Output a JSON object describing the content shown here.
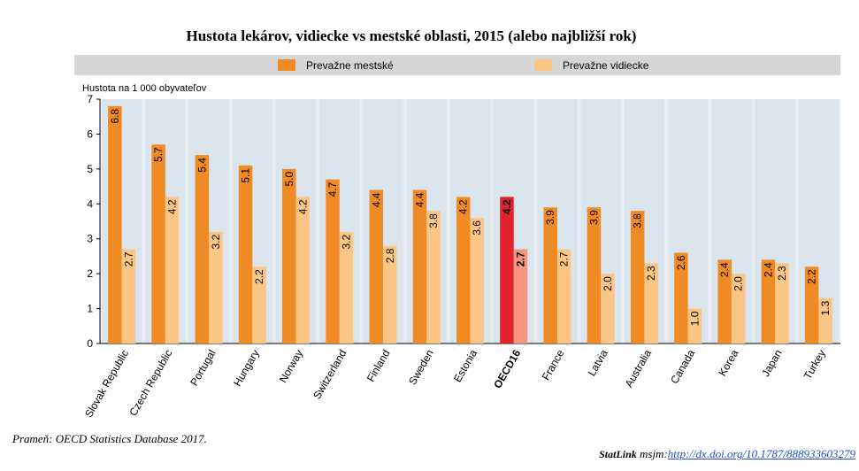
{
  "chart_data": {
    "type": "bar",
    "title": "Hustota lekárov, vidiecke vs mestské oblasti, 2015 (alebo najbližší rok)",
    "ylabel": "Hustota na 1 000 obyvateľov",
    "xlabel": "",
    "ylim": [
      0,
      7
    ],
    "yticks": [
      0,
      1,
      2,
      3,
      4,
      5,
      6,
      7
    ],
    "grid": false,
    "legend_position": "top",
    "categories": [
      "Slovak Republic",
      "Czech Republic",
      "Portugal",
      "Hungary",
      "Norway",
      "Switzerland",
      "Finland",
      "Sweden",
      "Estonia",
      "OECD16",
      "France",
      "Latvia",
      "Australia",
      "Canada",
      "Korea",
      "Japan",
      "Turkey"
    ],
    "highlight_category": "OECD16",
    "series": [
      {
        "name": "Prevažne mestské",
        "color": "#f08a24",
        "highlight_color": "#e0232b",
        "values": [
          6.8,
          5.7,
          5.4,
          5.1,
          5.0,
          4.7,
          4.4,
          4.4,
          4.2,
          4.2,
          3.9,
          3.9,
          3.8,
          2.6,
          2.4,
          2.4,
          2.2
        ]
      },
      {
        "name": "Prevažne vidiecke",
        "color": "#fbc586",
        "highlight_color": "#f4957d",
        "values": [
          2.7,
          4.2,
          3.2,
          2.2,
          4.2,
          3.2,
          2.8,
          3.8,
          3.6,
          2.7,
          2.7,
          2.0,
          2.3,
          1.0,
          2.0,
          2.3,
          1.3
        ]
      }
    ]
  },
  "footer": {
    "source": "Prameň: OECD Statistics Database 2017.",
    "statlink_brand": "StatLink",
    "statlink_word": "msjm:",
    "statlink_url": "http://dx.doi.org/10.1787/888933603279"
  }
}
